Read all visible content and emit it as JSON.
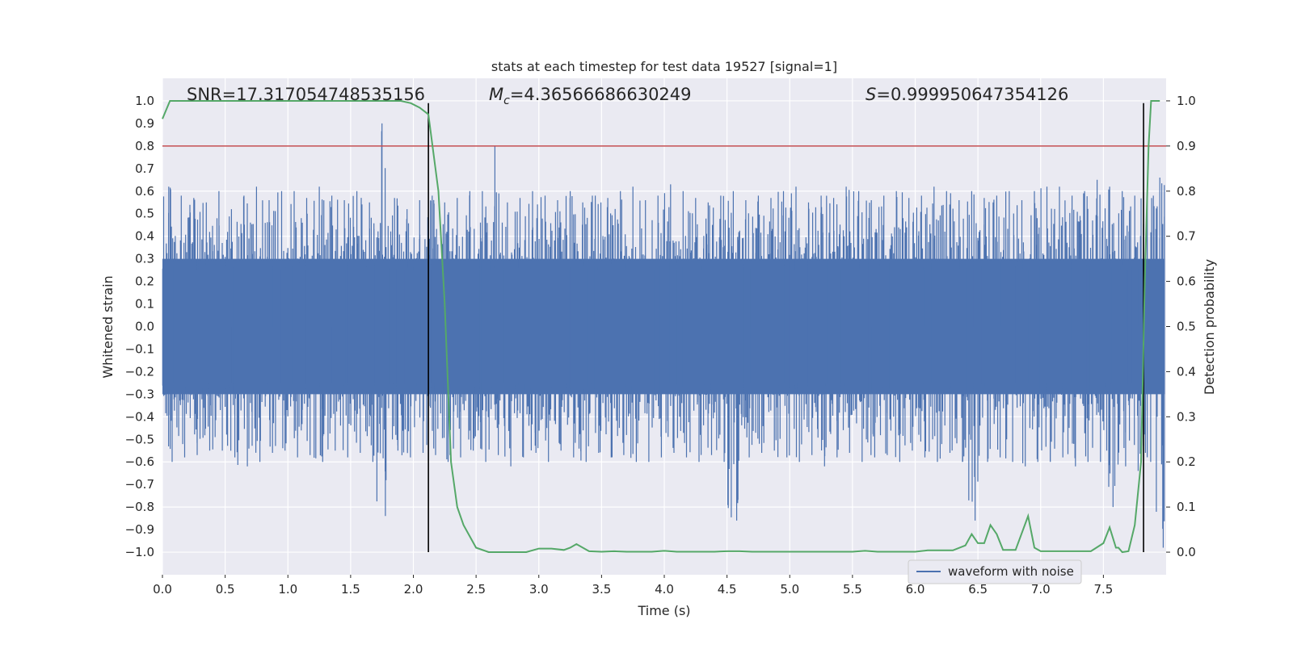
{
  "chart_data": {
    "type": "line",
    "title": "stats at each timestep for test data 19527 [signal=1]",
    "xlabel": "Time (s)",
    "ylabel": "Whitened strain",
    "y2label": "Detection probability",
    "xlim": [
      0,
      8
    ],
    "ylim": [
      -1.1,
      1.1
    ],
    "y2lim": [
      -0.05,
      1.05
    ],
    "xticks": [
      "0.0",
      "0.5",
      "1.0",
      "1.5",
      "2.0",
      "2.5",
      "3.0",
      "3.5",
      "4.0",
      "4.5",
      "5.0",
      "5.5",
      "6.0",
      "6.5",
      "7.0",
      "7.5"
    ],
    "yticks": [
      "−1.0",
      "−0.9",
      "−0.8",
      "−0.7",
      "−0.6",
      "−0.5",
      "−0.4",
      "−0.3",
      "−0.2",
      "−0.1",
      "0.0",
      "0.1",
      "0.2",
      "0.3",
      "0.4",
      "0.5",
      "0.6",
      "0.7",
      "0.8",
      "0.9",
      "1.0"
    ],
    "y2ticks": [
      "0.0",
      "0.1",
      "0.2",
      "0.3",
      "0.4",
      "0.5",
      "0.6",
      "0.7",
      "0.8",
      "0.9",
      "1.0"
    ],
    "grid": true,
    "legend_placement": "lower-right",
    "annotations": {
      "snr": "SNR=17.317054748535156",
      "mc_symbol": "M",
      "mc_sub": "c",
      "mc_value": "=4.36566686630249",
      "s_symbol": "S",
      "s_value": "=0.999950647354126"
    },
    "threshold_y2": 0.9,
    "vlines_x": [
      2.12,
      7.82
    ],
    "series": [
      {
        "name": "waveform with noise",
        "color": "#4c72b0",
        "axis": "left",
        "envelope_step": 0.1,
        "envelope_upper": [
          0.62,
          0.58,
          0.57,
          0.55,
          0.6,
          0.52,
          0.58,
          0.62,
          0.56,
          0.6,
          0.6,
          0.57,
          0.62,
          0.58,
          0.56,
          0.6,
          0.55,
          0.9,
          0.57,
          0.52,
          0.56,
          0.58,
          0.55,
          0.57,
          0.6,
          0.6,
          0.8,
          0.55,
          0.57,
          0.6,
          0.58,
          0.56,
          0.6,
          0.55,
          0.58,
          0.57,
          0.6,
          0.62,
          0.56,
          0.58,
          0.63,
          0.6,
          0.57,
          0.55,
          0.58,
          0.6,
          0.56,
          0.58,
          0.57,
          0.6,
          0.62,
          0.55,
          0.58,
          0.57,
          0.62,
          0.6,
          0.56,
          0.58,
          0.6,
          0.57,
          0.58,
          0.62,
          0.6,
          0.56,
          0.6,
          0.57,
          0.58,
          0.6,
          0.56,
          0.6,
          0.62,
          0.62,
          0.58,
          0.6,
          0.65,
          0.62,
          0.6,
          0.58,
          0.62,
          0.66
        ],
        "envelope_lower": [
          -0.6,
          -0.58,
          -0.57,
          -0.55,
          -0.55,
          -0.58,
          -0.62,
          -0.6,
          -0.56,
          -0.55,
          -0.58,
          -0.57,
          -0.6,
          -0.55,
          -0.58,
          -0.56,
          -0.6,
          -0.84,
          -0.55,
          -0.58,
          -0.56,
          -0.57,
          -0.6,
          -0.58,
          -0.55,
          -0.6,
          -0.57,
          -0.62,
          -0.58,
          -0.56,
          -0.6,
          -0.55,
          -0.58,
          -0.6,
          -0.56,
          -0.58,
          -0.57,
          -0.6,
          -0.6,
          -0.58,
          -0.56,
          -0.58,
          -0.6,
          -0.57,
          -0.6,
          -0.86,
          -0.58,
          -0.56,
          -0.55,
          -0.58,
          -0.6,
          -0.57,
          -0.62,
          -0.58,
          -0.56,
          -0.6,
          -0.58,
          -0.57,
          -0.6,
          -0.55,
          -0.58,
          -0.6,
          -0.56,
          -0.6,
          -0.86,
          -0.6,
          -0.58,
          -0.6,
          -0.62,
          -0.6,
          -0.6,
          -0.58,
          -0.62,
          -0.6,
          -0.6,
          -0.8,
          -0.62,
          -0.64,
          -0.6,
          -0.98
        ]
      },
      {
        "name": "detection probability",
        "color": "#55a868",
        "axis": "right",
        "x": [
          0,
          0.06,
          0.2,
          0.4,
          0.6,
          0.8,
          1.0,
          1.2,
          1.4,
          1.6,
          1.8,
          1.9,
          1.98,
          2.05,
          2.12,
          2.2,
          2.25,
          2.3,
          2.35,
          2.4,
          2.5,
          2.6,
          2.7,
          2.8,
          2.9,
          3.0,
          3.1,
          3.2,
          3.25,
          3.3,
          3.4,
          3.5,
          3.6,
          3.7,
          3.8,
          3.9,
          4.0,
          4.1,
          4.2,
          4.3,
          4.4,
          4.5,
          4.6,
          4.7,
          4.8,
          4.9,
          5.0,
          5.1,
          5.2,
          5.3,
          5.4,
          5.5,
          5.6,
          5.7,
          5.8,
          5.9,
          6.0,
          6.1,
          6.2,
          6.3,
          6.4,
          6.45,
          6.5,
          6.55,
          6.6,
          6.65,
          6.7,
          6.8,
          6.9,
          6.95,
          7.0,
          7.1,
          7.2,
          7.3,
          7.4,
          7.5,
          7.55,
          7.6,
          7.62,
          7.65,
          7.7,
          7.75,
          7.8,
          7.83,
          7.86,
          7.88,
          7.92,
          7.95
        ],
        "y": [
          0.96,
          1.0,
          1.0,
          1.0,
          1.0,
          1.0,
          1.0,
          1.0,
          1.0,
          1.0,
          1.0,
          1.0,
          0.995,
          0.985,
          0.97,
          0.8,
          0.55,
          0.2,
          0.1,
          0.06,
          0.01,
          0.0,
          0.0,
          0.0,
          0.0,
          0.008,
          0.008,
          0.005,
          0.01,
          0.018,
          0.002,
          0.001,
          0.002,
          0.001,
          0.001,
          0.001,
          0.003,
          0.001,
          0.001,
          0.001,
          0.001,
          0.002,
          0.002,
          0.001,
          0.001,
          0.001,
          0.001,
          0.001,
          0.001,
          0.001,
          0.001,
          0.001,
          0.003,
          0.001,
          0.001,
          0.001,
          0.001,
          0.004,
          0.004,
          0.004,
          0.015,
          0.04,
          0.02,
          0.02,
          0.06,
          0.04,
          0.005,
          0.005,
          0.08,
          0.01,
          0.002,
          0.002,
          0.002,
          0.002,
          0.002,
          0.02,
          0.055,
          0.01,
          0.01,
          0.0,
          0.002,
          0.06,
          0.2,
          0.6,
          0.9,
          1.0,
          1.0,
          1.0
        ]
      }
    ]
  }
}
